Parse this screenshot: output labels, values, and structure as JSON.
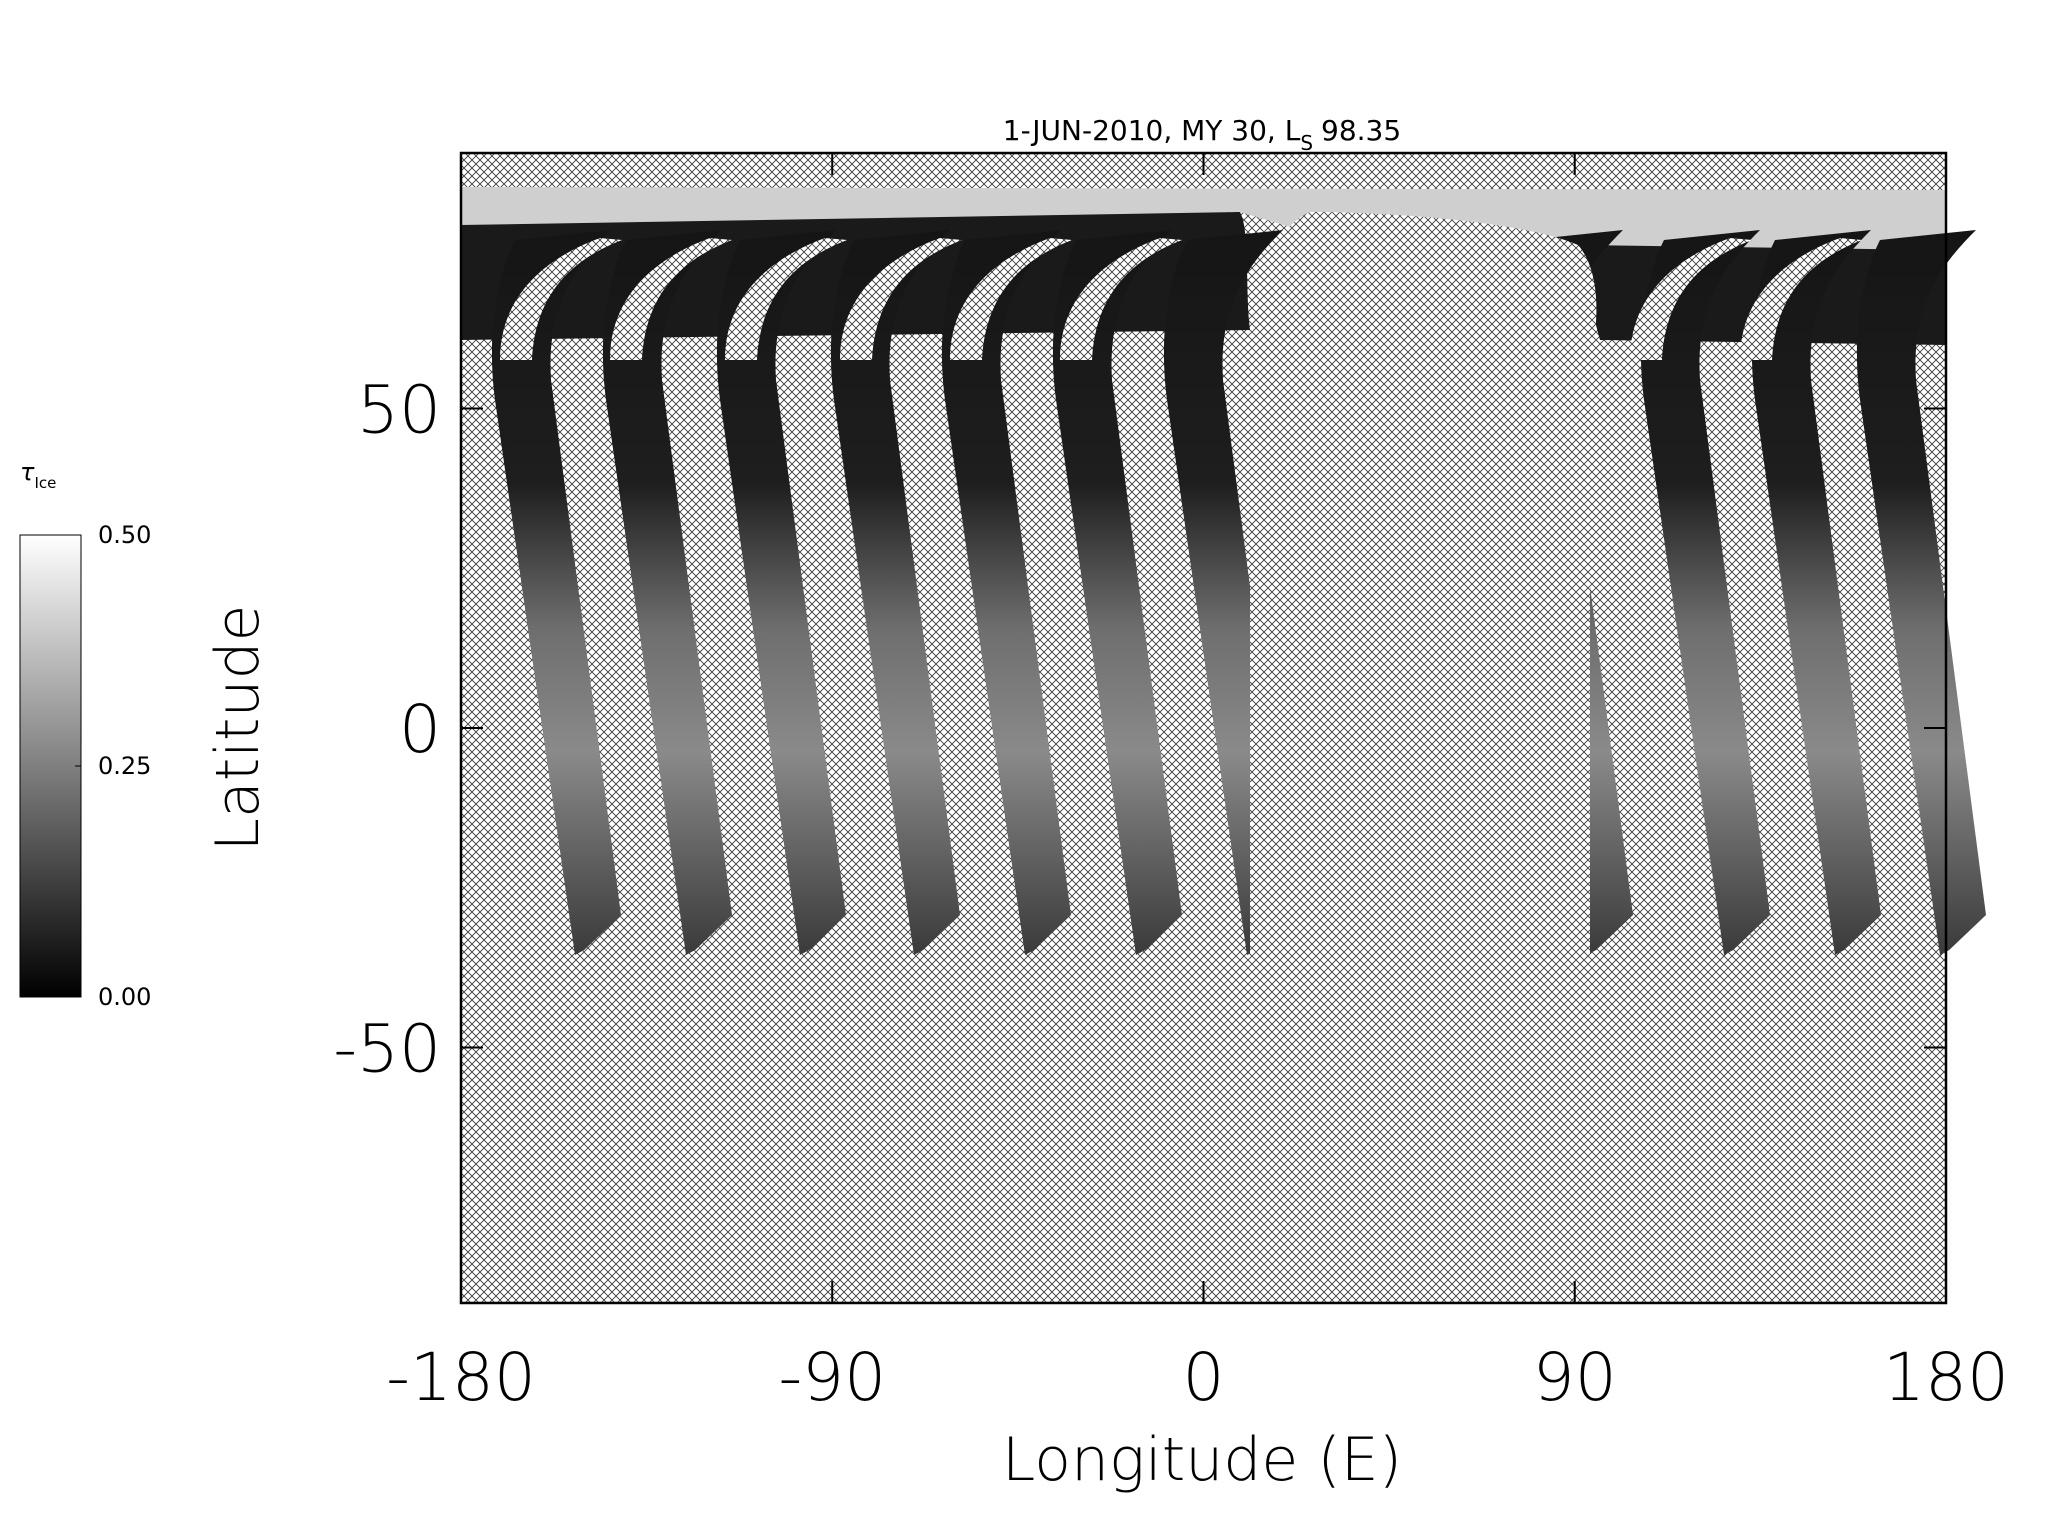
{
  "chart_data": {
    "type": "map",
    "title": "1-JUN-2010, MY 30,  L",
    "title_subscript": "S",
    "title_suffix": "98.35",
    "x_label": "Longitude (E)",
    "y_label": "Latitude",
    "xlim": [
      -180,
      180
    ],
    "xticks": [
      -180,
      -90,
      0,
      90,
      180
    ],
    "ylim": [
      -90,
      90
    ],
    "yticks": [
      -50,
      0,
      50
    ],
    "colorbar": {
      "label": "τ",
      "label_subscript": "Ice",
      "lim": [
        0,
        0.5
      ],
      "ticks": [
        {
          "value": 0,
          "label": "0.00"
        },
        {
          "value": 0.25,
          "label": "0.25"
        },
        {
          "value": 0.5,
          "label": "0.50"
        }
      ],
      "colors": [
        "#000000",
        "#ffffff"
      ]
    }
  }
}
